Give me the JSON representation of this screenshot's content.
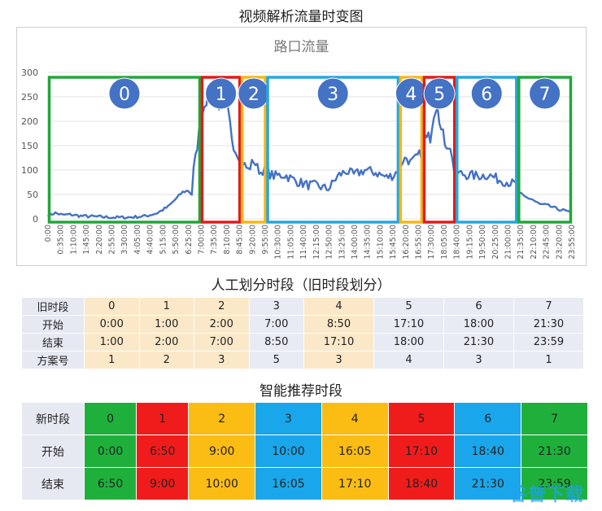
{
  "page": {
    "title": "视频解析流量时变图",
    "table1_title": "人工划分时段（旧时段划分）",
    "table2_title": "智能推荐时段",
    "watermark": "谷普下载"
  },
  "chart_data": {
    "type": "line",
    "title": "路口流量",
    "ylim": [
      0,
      300
    ],
    "yticks": [
      0,
      50,
      100,
      150,
      200,
      250,
      300
    ],
    "xlabels": [
      "0:00",
      "0:35:00",
      "1:10:00",
      "1:45:00",
      "2:20:00",
      "2:55:00",
      "3:30:00",
      "4:05:00",
      "4:40:00",
      "5:15:00",
      "5:50:00",
      "6:25:00",
      "7:00:00",
      "7:35:00",
      "8:10:00",
      "8:45:00",
      "9:20:00",
      "9:55:00",
      "10:30:00",
      "11:05:00",
      "11:40:00",
      "12:15:00",
      "12:50:00",
      "13:25:00",
      "14:00:00",
      "14:35:00",
      "15:10:00",
      "15:45:00",
      "16:20:00",
      "16:55:00",
      "17:30:00",
      "18:05:00",
      "18:40:00",
      "19:15:00",
      "19:50:00",
      "20:25:00",
      "21:00:00",
      "21:35:00",
      "22:10:00",
      "22:45:00",
      "23:20:00",
      "23:55:00"
    ],
    "anchors": [
      [
        0,
        8
      ],
      [
        20,
        12
      ],
      [
        40,
        8
      ],
      [
        60,
        9
      ],
      [
        90,
        6
      ],
      [
        120,
        5
      ],
      [
        150,
        4
      ],
      [
        180,
        3
      ],
      [
        210,
        3
      ],
      [
        240,
        4
      ],
      [
        270,
        6
      ],
      [
        300,
        12
      ],
      [
        330,
        25
      ],
      [
        350,
        40
      ],
      [
        370,
        55
      ],
      [
        385,
        58
      ],
      [
        395,
        50
      ],
      [
        400,
        100
      ],
      [
        410,
        150
      ],
      [
        420,
        200
      ],
      [
        430,
        240
      ],
      [
        440,
        250
      ],
      [
        450,
        265
      ],
      [
        460,
        240
      ],
      [
        470,
        235
      ],
      [
        480,
        250
      ],
      [
        490,
        235
      ],
      [
        505,
        170
      ],
      [
        515,
        140
      ],
      [
        520,
        135
      ],
      [
        535,
        115
      ],
      [
        550,
        100
      ],
      [
        565,
        120
      ],
      [
        575,
        105
      ],
      [
        585,
        95
      ],
      [
        590,
        100
      ],
      [
        620,
        88
      ],
      [
        650,
        90
      ],
      [
        680,
        78
      ],
      [
        710,
        70
      ],
      [
        740,
        68
      ],
      [
        770,
        60
      ],
      [
        790,
        82
      ],
      [
        800,
        90
      ],
      [
        820,
        98
      ],
      [
        840,
        90
      ],
      [
        870,
        100
      ],
      [
        900,
        95
      ],
      [
        930,
        85
      ],
      [
        950,
        90
      ],
      [
        965,
        105
      ],
      [
        975,
        120
      ],
      [
        985,
        125
      ],
      [
        995,
        115
      ],
      [
        1005,
        120
      ],
      [
        1015,
        128
      ],
      [
        1025,
        135
      ],
      [
        1030,
        180
      ],
      [
        1040,
        160
      ],
      [
        1050,
        170
      ],
      [
        1060,
        220
      ],
      [
        1070,
        240
      ],
      [
        1080,
        180
      ],
      [
        1090,
        160
      ],
      [
        1100,
        150
      ],
      [
        1110,
        130
      ],
      [
        1115,
        100
      ],
      [
        1120,
        95
      ],
      [
        1150,
        90
      ],
      [
        1180,
        88
      ],
      [
        1210,
        90
      ],
      [
        1240,
        80
      ],
      [
        1265,
        75
      ],
      [
        1285,
        70
      ],
      [
        1290,
        55
      ],
      [
        1310,
        45
      ],
      [
        1330,
        40
      ],
      [
        1350,
        30
      ],
      [
        1370,
        28
      ],
      [
        1400,
        20
      ],
      [
        1420,
        17
      ],
      [
        1439,
        10
      ]
    ],
    "segments_old": [
      {
        "label": "0",
        "start": "0:00",
        "end": "7:00",
        "color": "#22a63b"
      },
      {
        "label": "1",
        "start": "7:00",
        "end": "8:50",
        "color": "#e01b1b"
      },
      {
        "label": "2",
        "start": "8:50",
        "end": "10:00",
        "color": "#f5b617"
      },
      {
        "label": "3",
        "start": "10:00",
        "end": "16:05",
        "color": "#27a6de"
      },
      {
        "label": "4",
        "start": "16:05",
        "end": "17:10",
        "color": "#f5b617"
      },
      {
        "label": "5",
        "start": "17:10",
        "end": "18:40",
        "color": "#e01b1b"
      },
      {
        "label": "6",
        "start": "18:40",
        "end": "21:30",
        "color": "#27a6de"
      },
      {
        "label": "7",
        "start": "21:30",
        "end": "23:59",
        "color": "#22a63b"
      }
    ],
    "line_color": "#4472c4",
    "badge_color": "#4472c4"
  },
  "table1": {
    "rows": [
      {
        "header": "旧时段",
        "cells": [
          "0",
          "1",
          "2",
          "3",
          "4",
          "5",
          "6",
          "7"
        ]
      },
      {
        "header": "开始",
        "cells": [
          "0:00",
          "1:00",
          "2:00",
          "7:00",
          "8:50",
          "17:10",
          "18:00",
          "21:30"
        ]
      },
      {
        "header": "结束",
        "cells": [
          "1:00",
          "2:00",
          "7:00",
          "8:50",
          "17:10",
          "18:00",
          "21:30",
          "23:59"
        ]
      },
      {
        "header": "方案号",
        "cells": [
          "1",
          "2",
          "3",
          "5",
          "3",
          "4",
          "3",
          "1"
        ]
      }
    ],
    "highlight_cols": [
      0,
      1,
      2,
      4
    ]
  },
  "table2": {
    "colors": [
      "#1fb03c",
      "#f01c1c",
      "#fbbc14",
      "#1aa6ea",
      "#fbbc14",
      "#f01c1c",
      "#1aa6ea",
      "#1fb03c"
    ],
    "rows": [
      {
        "header": "新时段",
        "cells": [
          "0",
          "1",
          "2",
          "3",
          "4",
          "5",
          "6",
          "7"
        ]
      },
      {
        "header": "开始",
        "cells": [
          "0:00",
          "6:50",
          "9:00",
          "10:00",
          "16:05",
          "17:10",
          "18:40",
          "21:30"
        ]
      },
      {
        "header": "结束",
        "cells": [
          "6:50",
          "9:00",
          "10:00",
          "16:05",
          "17:10",
          "18:40",
          "21:30",
          "23:59"
        ]
      }
    ]
  }
}
